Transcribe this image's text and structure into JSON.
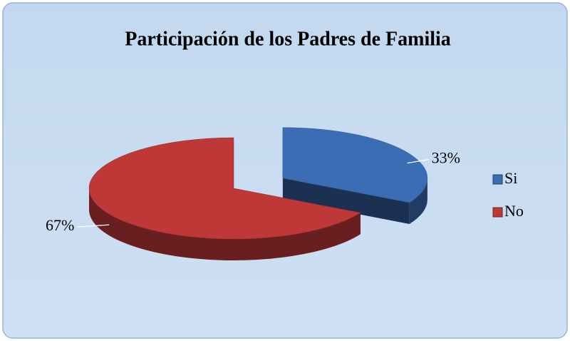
{
  "chart_data": {
    "type": "pie3d",
    "title": "Participación de los Padres de Familia",
    "categories": [
      "Si",
      "No"
    ],
    "values": [
      33,
      67
    ],
    "value_labels": [
      "33%",
      "67%"
    ],
    "colors": [
      "#3a6db4",
      "#be3838"
    ],
    "legend": "right"
  }
}
